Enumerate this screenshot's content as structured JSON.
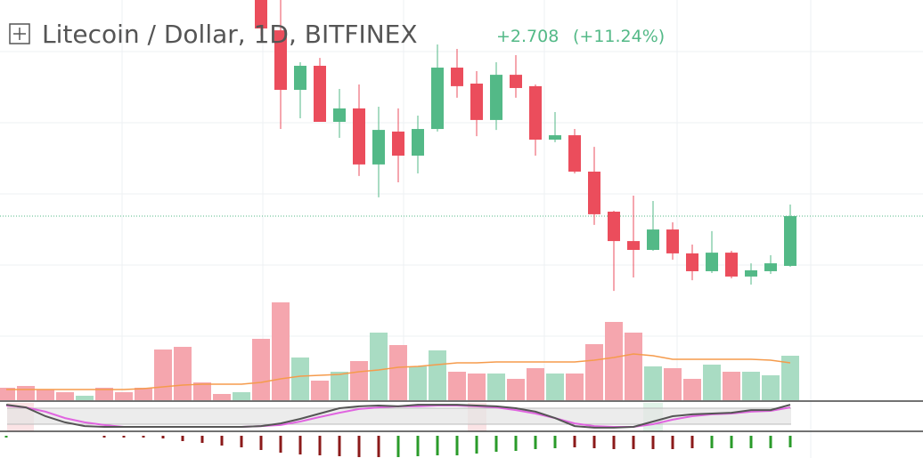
{
  "chart_data": {
    "type": "candlestick",
    "title": "Litecoin / Dollar, 1D, BITFINEX",
    "change": "+2.708",
    "change_pct": "(+11.24%)",
    "ylim": [
      16.78,
      38.56
    ],
    "up_color": "#53b987",
    "down_color": "#eb4d5c",
    "last_price": 26.8,
    "candles": {
      "open": [
        null,
        null,
        null,
        null,
        null,
        null,
        null,
        null,
        null,
        null,
        null,
        null,
        null,
        38.8,
        36.91,
        33.67,
        34.98,
        31.93,
        32.66,
        29.61,
        31.4,
        30.09,
        31.54,
        34.88,
        34.01,
        32.03,
        34.49,
        33.87,
        30.96,
        31.2,
        29.22,
        27.04,
        25.44,
        24.96,
        26.07,
        24.77,
        23.8,
        24.81,
        23.51,
        23.8,
        24.09
      ],
      "high": [
        null,
        null,
        null,
        null,
        null,
        null,
        null,
        null,
        null,
        null,
        null,
        null,
        null,
        39.53,
        38.56,
        35.17,
        35.41,
        33.72,
        33.96,
        32.75,
        32.66,
        32.27,
        36.14,
        35.9,
        34.69,
        35.17,
        35.56,
        33.96,
        32.46,
        31.54,
        30.57,
        27.09,
        27.91,
        27.62,
        26.46,
        25.25,
        25.98,
        24.91,
        24.23,
        24.67,
        27.43
      ],
      "low": [
        null,
        null,
        null,
        null,
        null,
        null,
        null,
        null,
        null,
        null,
        null,
        null,
        null,
        36.62,
        31.54,
        32.12,
        31.93,
        31.06,
        28.98,
        27.82,
        28.64,
        29.12,
        31.4,
        33.24,
        31.15,
        31.49,
        33.24,
        30.09,
        30.82,
        29.12,
        26.32,
        22.73,
        23.46,
        24.91,
        24.43,
        23.31,
        23.7,
        23.41,
        23.07,
        23.65,
        24.04
      ],
      "close": [
        null,
        null,
        null,
        null,
        null,
        null,
        null,
        null,
        null,
        null,
        null,
        null,
        null,
        37.01,
        33.67,
        34.98,
        31.93,
        32.66,
        29.61,
        31.49,
        30.09,
        31.54,
        34.88,
        33.87,
        32.03,
        34.49,
        33.77,
        30.96,
        31.2,
        29.22,
        26.9,
        25.44,
        24.96,
        26.07,
        24.77,
        23.8,
        24.81,
        23.51,
        23.85,
        24.23,
        26.8
      ]
    },
    "volume": {
      "vlim": [
        0,
        450
      ],
      "values": [
        14,
        16,
        12,
        9,
        5,
        14,
        9,
        14,
        57,
        60,
        20,
        7,
        9,
        69,
        110,
        48,
        22,
        32,
        44,
        76,
        62,
        38,
        56,
        32,
        30,
        30,
        24,
        36,
        30,
        30,
        63,
        88,
        76,
        38,
        36,
        24,
        40,
        32,
        32,
        28,
        50
      ],
      "colors": [
        "#f5a6ae",
        "#f5a6ae",
        "#f5a6ae",
        "#f5a6ae",
        "#a9dcc3",
        "#f5a6ae",
        "#f5a6ae",
        "#f5a6ae",
        "#f5a6ae",
        "#f5a6ae",
        "#f5a6ae",
        "#f5a6ae",
        "#a9dcc3",
        "#f5a6ae",
        "#f5a6ae",
        "#a9dcc3",
        "#f5a6ae",
        "#a9dcc3",
        "#f5a6ae",
        "#a9dcc3",
        "#f5a6ae",
        "#a9dcc3",
        "#a9dcc3",
        "#f5a6ae",
        "#f5a6ae",
        "#a9dcc3",
        "#f5a6ae",
        "#f5a6ae",
        "#a9dcc3",
        "#f5a6ae",
        "#f5a6ae",
        "#f5a6ae",
        "#f5a6ae",
        "#a9dcc3",
        "#f5a6ae",
        "#f5a6ae",
        "#a9dcc3",
        "#f5a6ae",
        "#a9dcc3",
        "#a9dcc3",
        "#a9dcc3"
      ],
      "ma": [
        12,
        12,
        12,
        12,
        12,
        12,
        12,
        13,
        15,
        17,
        18,
        18,
        18,
        20,
        24,
        27,
        28,
        29,
        32,
        34,
        37,
        38,
        40,
        42,
        42,
        43,
        43,
        43,
        43,
        43,
        45,
        48,
        52,
        50,
        46,
        46,
        46,
        46,
        46,
        45,
        42
      ],
      "ma_color": "#f59b4c"
    },
    "stoch": {
      "lim": [
        0,
        100
      ],
      "levels": [
        20,
        80
      ],
      "k": [
        93,
        83,
        50,
        27,
        13,
        10,
        10,
        10,
        10,
        10,
        10,
        10,
        10,
        13,
        23,
        40,
        60,
        80,
        87,
        90,
        87,
        93,
        93,
        93,
        90,
        87,
        80,
        67,
        43,
        13,
        7,
        7,
        10,
        30,
        50,
        57,
        60,
        63,
        73,
        73,
        93
      ],
      "d": [
        90,
        83,
        67,
        43,
        27,
        17,
        10,
        10,
        10,
        10,
        10,
        10,
        10,
        13,
        17,
        30,
        47,
        63,
        77,
        83,
        87,
        87,
        90,
        90,
        87,
        83,
        73,
        60,
        43,
        23,
        13,
        10,
        10,
        20,
        37,
        50,
        57,
        60,
        67,
        70,
        83
      ],
      "k_color": "#555555",
      "d_color": "#e065e0"
    },
    "hist": {
      "lim": [
        0,
        25
      ],
      "values": [
        2,
        null,
        null,
        null,
        null,
        2,
        2,
        2,
        3,
        6,
        8,
        11,
        13,
        16,
        19,
        21,
        22,
        23,
        24,
        24,
        24,
        23,
        22,
        22,
        20,
        18,
        17,
        15,
        14,
        13,
        14,
        15,
        15,
        15,
        15,
        14,
        14,
        14,
        14,
        14,
        13
      ],
      "colors": [
        "#2a9b2a",
        null,
        null,
        null,
        null,
        "#8b1a1a",
        "#8b1a1a",
        "#8b1a1a",
        "#8b1a1a",
        "#8b1a1a",
        "#8b1a1a",
        "#8b1a1a",
        "#8b1a1a",
        "#8b1a1a",
        "#8b1a1a",
        "#8b1a1a",
        "#8b1a1a",
        "#8b1a1a",
        "#8b1a1a",
        "#8b1a1a",
        "#2a9b2a",
        "#2a9b2a",
        "#2a9b2a",
        "#2a9b2a",
        "#2a9b2a",
        "#2a9b2a",
        "#2a9b2a",
        "#2a9b2a",
        "#2a9b2a",
        "#8b1a1a",
        "#8b1a1a",
        "#8b1a1a",
        "#8b1a1a",
        "#8b1a1a",
        "#8b1a1a",
        "#8b1a1a",
        "#2a9b2a",
        "#2a9b2a",
        "#2a9b2a",
        "#2a9b2a",
        "#2a9b2a"
      ]
    }
  }
}
